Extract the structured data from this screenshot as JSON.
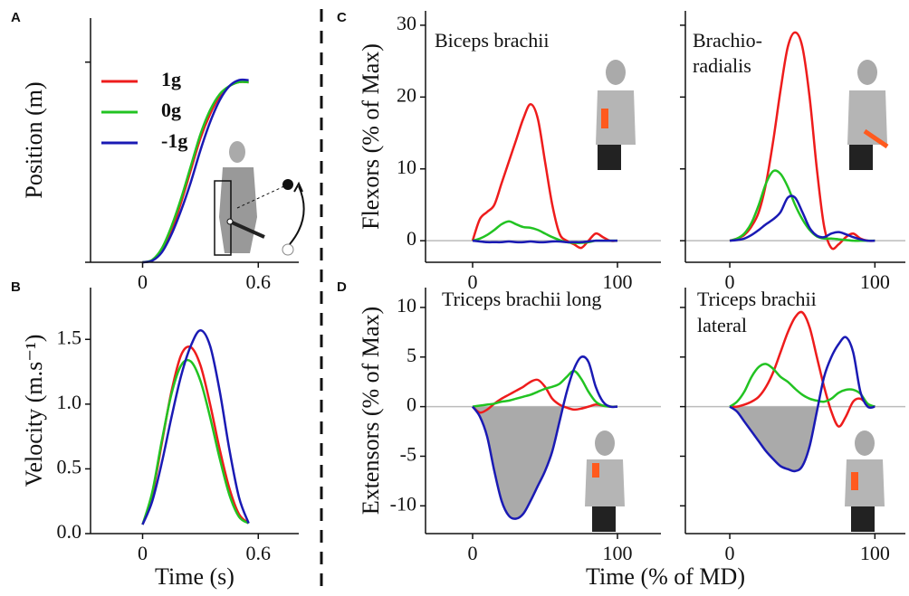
{
  "panel_labels": [
    "A",
    "B",
    "C",
    "D"
  ],
  "shared_labels": {
    "flexors_y": "Flexors (% of Max)",
    "extensors_y": "Extensors (% of Max)",
    "time_x": "Time (% of MD)"
  },
  "chart_data": [
    {
      "type": "line",
      "y_label": "Position (m)",
      "legend": "upper left",
      "x": [
        0,
        0.05,
        0.1,
        0.15,
        0.2,
        0.25,
        0.3,
        0.35,
        0.4,
        0.45,
        0.5,
        0.55
      ],
      "xlim": [
        -0.27,
        0.81
      ],
      "xticks": [
        0,
        0.6
      ],
      "ylim": [
        0,
        0.61
      ],
      "yticks": [
        {
          "value": 0,
          "label": "0.0"
        },
        0.5
      ],
      "ytick_labels": false,
      "series": [
        {
          "name": "1g",
          "color": "#ee1c1c",
          "values": [
            0,
            0.005,
            0.03,
            0.08,
            0.15,
            0.23,
            0.31,
            0.37,
            0.415,
            0.44,
            0.45,
            0.45
          ]
        },
        {
          "name": "0g",
          "color": "#22c322",
          "values": [
            0,
            0.006,
            0.035,
            0.09,
            0.16,
            0.24,
            0.32,
            0.38,
            0.42,
            0.44,
            0.45,
            0.45
          ]
        },
        {
          "name": "-1g",
          "color": "#1a1ab4",
          "values": [
            0,
            0.004,
            0.025,
            0.07,
            0.13,
            0.2,
            0.28,
            0.35,
            0.405,
            0.44,
            0.455,
            0.455
          ]
        }
      ]
    },
    {
      "type": "line",
      "y_label": "Velocity (m.s⁻¹)",
      "x_label": "Time (s)",
      "x": [
        0,
        0.05,
        0.1,
        0.15,
        0.2,
        0.25,
        0.3,
        0.35,
        0.4,
        0.45,
        0.5,
        0.55
      ],
      "xlim": [
        -0.27,
        0.81
      ],
      "xticks": [
        0,
        0.6
      ],
      "ylim": [
        0,
        1.9
      ],
      "yticks": [
        {
          "value": 0,
          "label": "0.0"
        },
        0.5,
        {
          "value": 1,
          "label": "1.0"
        },
        1.5
      ],
      "series": [
        {
          "color": "#ee1c1c",
          "values": [
            0.07,
            0.3,
            0.7,
            1.1,
            1.38,
            1.44,
            1.3,
            1.0,
            0.65,
            0.35,
            0.15,
            0.08
          ]
        },
        {
          "color": "#22c322",
          "values": [
            0.07,
            0.32,
            0.72,
            1.08,
            1.3,
            1.33,
            1.18,
            0.9,
            0.58,
            0.3,
            0.13,
            0.08
          ]
        },
        {
          "color": "#1a1ab4",
          "values": [
            0.07,
            0.25,
            0.55,
            0.9,
            1.22,
            1.45,
            1.57,
            1.45,
            1.1,
            0.65,
            0.28,
            0.08
          ]
        }
      ]
    },
    {
      "type": "line",
      "title_lines": [
        "Biceps brachii"
      ],
      "zero_line": true,
      "x": [
        0,
        5,
        10,
        15,
        20,
        25,
        30,
        35,
        40,
        45,
        50,
        55,
        60,
        65,
        70,
        75,
        80,
        85,
        90,
        95,
        100
      ],
      "xlim": [
        -32.5,
        130
      ],
      "xticks": [
        0,
        100
      ],
      "ylim": [
        -3,
        32
      ],
      "yticks": [
        0,
        10,
        20,
        30
      ],
      "series": [
        {
          "color": "#ee1c1c",
          "values": [
            0,
            3,
            4,
            5,
            8,
            11,
            14,
            17,
            19,
            17,
            11,
            5,
            1,
            0,
            -0.5,
            -1,
            0,
            1,
            0.5,
            0,
            0
          ]
        },
        {
          "color": "#22c322",
          "values": [
            0,
            0.3,
            0.8,
            1.5,
            2.3,
            2.7,
            2.3,
            1.9,
            1.8,
            1.5,
            1,
            0.5,
            0.1,
            -0.2,
            -0.3,
            -0.3,
            -0.2,
            0,
            0,
            0,
            0
          ]
        },
        {
          "color": "#1a1ab4",
          "values": [
            0,
            -0.1,
            -0.2,
            -0.2,
            -0.2,
            -0.1,
            -0.2,
            -0.2,
            -0.1,
            -0.2,
            -0.2,
            -0.1,
            -0.1,
            -0.2,
            -0.2,
            -0.2,
            -0.1,
            0,
            0,
            0,
            0
          ]
        }
      ]
    },
    {
      "type": "line",
      "title_lines": [
        "Brachio-",
        "radialis"
      ],
      "zero_line": true,
      "ytick_labels": false,
      "x": [
        0,
        5,
        10,
        15,
        20,
        25,
        30,
        35,
        40,
        45,
        50,
        55,
        60,
        65,
        70,
        75,
        80,
        85,
        90,
        95,
        100
      ],
      "xlim": [
        -30.6,
        121
      ],
      "xticks": [
        0,
        100
      ],
      "ylim": [
        -3,
        32
      ],
      "yticks": [
        0,
        10,
        20,
        30
      ],
      "series": [
        {
          "color": "#ee1c1c",
          "values": [
            0,
            0.3,
            0.8,
            2,
            4,
            8,
            14,
            21,
            27,
            29,
            27,
            20,
            10,
            2,
            -1,
            -0.5,
            0.5,
            1,
            0.3,
            0,
            0
          ]
        },
        {
          "color": "#22c322",
          "values": [
            0,
            0.3,
            1,
            2.5,
            5,
            8,
            9.7,
            9.3,
            7.5,
            5,
            3,
            1.5,
            0.6,
            0.3,
            0.3,
            0.2,
            0.1,
            0,
            0,
            0,
            0
          ]
        },
        {
          "color": "#1a1ab4",
          "values": [
            0,
            0.1,
            0.3,
            0.8,
            1.5,
            2.3,
            3,
            4,
            6,
            6,
            4,
            1.8,
            0.7,
            0.5,
            1,
            1.2,
            0.9,
            0.5,
            0.2,
            0,
            0
          ]
        }
      ]
    },
    {
      "type": "line",
      "title_lines": [
        "Triceps brachii long"
      ],
      "zero_line": true,
      "shade_negative": 2,
      "x": [
        0,
        5,
        10,
        15,
        20,
        25,
        30,
        35,
        40,
        45,
        50,
        55,
        60,
        65,
        70,
        75,
        80,
        85,
        90,
        95,
        100
      ],
      "xlim": [
        -32.5,
        130
      ],
      "xticks": [
        0,
        100
      ],
      "ylim": [
        -12.8,
        12
      ],
      "yticks": [
        -10,
        -5,
        0,
        5,
        10
      ],
      "series": [
        {
          "color": "#ee1c1c",
          "values": [
            0,
            -0.6,
            -0.3,
            0.3,
            0.8,
            1.2,
            1.6,
            2,
            2.5,
            2.7,
            2,
            0.8,
            0.2,
            -0.1,
            -0.3,
            -0.2,
            0,
            0.2,
            0.1,
            0,
            0
          ]
        },
        {
          "color": "#22c322",
          "values": [
            0,
            0.1,
            0.2,
            0.3,
            0.5,
            0.6,
            0.8,
            1,
            1.2,
            1.5,
            1.8,
            2,
            2.3,
            3,
            3.6,
            2.8,
            1.5,
            0.5,
            0.1,
            0,
            0
          ]
        },
        {
          "color": "#1a1ab4",
          "values": [
            0,
            -1,
            -3,
            -6.5,
            -9.5,
            -11,
            -11.3,
            -10.8,
            -9.5,
            -8,
            -6.5,
            -4.5,
            -1.5,
            1.5,
            3.8,
            5,
            4.5,
            2,
            0.5,
            0,
            0
          ]
        }
      ]
    },
    {
      "type": "line",
      "title_lines": [
        "Triceps brachii",
        "lateral"
      ],
      "zero_line": true,
      "shade_negative": 2,
      "ytick_labels": false,
      "x": [
        0,
        5,
        10,
        15,
        20,
        25,
        30,
        35,
        40,
        45,
        50,
        55,
        60,
        65,
        70,
        75,
        80,
        85,
        90,
        95,
        100
      ],
      "xlim": [
        -30.6,
        121
      ],
      "xticks": [
        0,
        100
      ],
      "ylim": [
        -12.8,
        12
      ],
      "yticks": [
        -10,
        -5,
        0,
        5,
        10
      ],
      "series": [
        {
          "color": "#ee1c1c",
          "values": [
            0,
            0,
            0.2,
            0.5,
            1,
            2,
            3.5,
            5.5,
            7.5,
            9,
            9.5,
            8,
            5,
            2,
            -0.5,
            -2,
            -1,
            0.5,
            0.8,
            0.2,
            0
          ]
        },
        {
          "color": "#22c322",
          "values": [
            0,
            0.5,
            1.5,
            3,
            4,
            4.3,
            3.8,
            3,
            2.5,
            1.8,
            1.2,
            0.8,
            0.6,
            0.5,
            0.8,
            1.4,
            1.7,
            1.7,
            1.3,
            0.3,
            0
          ]
        },
        {
          "color": "#1a1ab4",
          "values": [
            0,
            -0.5,
            -1.5,
            -2.5,
            -3.5,
            -4.5,
            -5.3,
            -6,
            -6.3,
            -6.5,
            -6,
            -4,
            -0.5,
            3,
            5,
            6.3,
            7,
            5.5,
            1.5,
            0,
            0
          ]
        }
      ]
    }
  ]
}
